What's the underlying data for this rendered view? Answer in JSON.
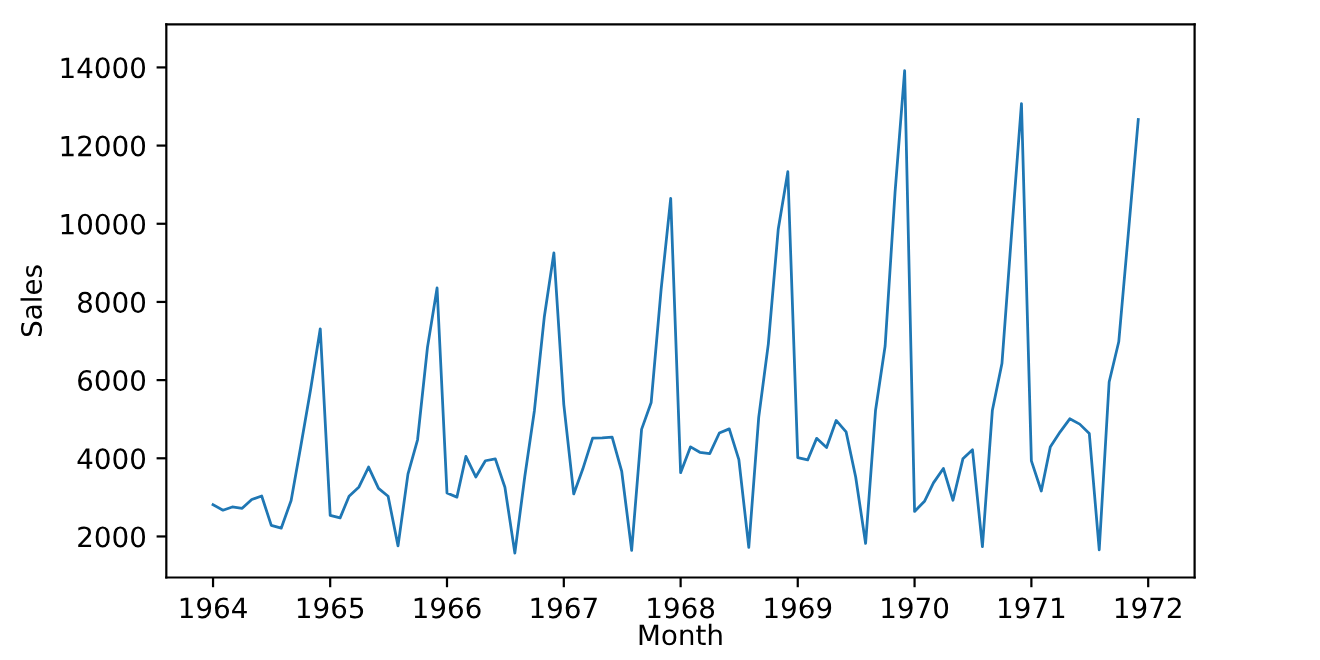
{
  "chart_data": {
    "type": "line",
    "xlabel": "Month",
    "ylabel": "Sales",
    "x": [
      "1964-01",
      "1964-02",
      "1964-03",
      "1964-04",
      "1964-05",
      "1964-06",
      "1964-07",
      "1964-08",
      "1964-09",
      "1964-10",
      "1964-11",
      "1964-12",
      "1965-01",
      "1965-02",
      "1965-03",
      "1965-04",
      "1965-05",
      "1965-06",
      "1965-07",
      "1965-08",
      "1965-09",
      "1965-10",
      "1965-11",
      "1965-12",
      "1966-01",
      "1966-02",
      "1966-03",
      "1966-04",
      "1966-05",
      "1966-06",
      "1966-07",
      "1966-08",
      "1966-09",
      "1966-10",
      "1966-11",
      "1966-12",
      "1967-01",
      "1967-02",
      "1967-03",
      "1967-04",
      "1967-05",
      "1967-06",
      "1967-07",
      "1967-08",
      "1967-09",
      "1967-10",
      "1967-11",
      "1967-12",
      "1968-01",
      "1968-02",
      "1968-03",
      "1968-04",
      "1968-05",
      "1968-06",
      "1968-07",
      "1968-08",
      "1968-09",
      "1968-10",
      "1968-11",
      "1968-12",
      "1969-01",
      "1969-02",
      "1969-03",
      "1969-04",
      "1969-05",
      "1969-06",
      "1969-07",
      "1969-08",
      "1969-09",
      "1969-10",
      "1969-11",
      "1969-12",
      "1970-01",
      "1970-02",
      "1970-03",
      "1970-04",
      "1970-05",
      "1970-06",
      "1970-07",
      "1970-08",
      "1970-09",
      "1970-10",
      "1970-11",
      "1970-12",
      "1971-01",
      "1971-02",
      "1971-03",
      "1971-04",
      "1971-05",
      "1971-06",
      "1971-07",
      "1971-08",
      "1971-09",
      "1971-10",
      "1971-11",
      "1971-12"
    ],
    "series": [
      {
        "color": "#1f77b4",
        "values": [
          2815,
          2672,
          2755,
          2721,
          2946,
          3036,
          2282,
          2212,
          2922,
          4301,
          5764,
          7312,
          2541,
          2475,
          3031,
          3266,
          3776,
          3230,
          3028,
          1759,
          3595,
          4474,
          6838,
          8357,
          3113,
          3006,
          4047,
          3523,
          3937,
          3986,
          3260,
          1573,
          3528,
          5211,
          7614,
          9254,
          5375,
          3088,
          3718,
          4514,
          4520,
          4539,
          3663,
          1643,
          4739,
          5428,
          8314,
          10651,
          3633,
          4292,
          4154,
          4121,
          4647,
          4753,
          3965,
          1723,
          5048,
          6922,
          9858,
          11331,
          4016,
          3957,
          4510,
          4276,
          4968,
          4677,
          3523,
          1821,
          5222,
          6872,
          10803,
          13916,
          2639,
          2899,
          3370,
          3740,
          2927,
          3986,
          4217,
          1738,
          5221,
          6424,
          9842,
          13076,
          3934,
          3162,
          4286,
          4676,
          5010,
          4874,
          4633,
          1659,
          5951,
          6981,
          9851,
          12670
        ]
      }
    ],
    "xlim": [
      "1963-08-08",
      "1972-05-25"
    ],
    "xticks": [
      {
        "value": "1964-01-01",
        "label": "1964"
      },
      {
        "value": "1965-01-01",
        "label": "1965"
      },
      {
        "value": "1966-01-01",
        "label": "1966"
      },
      {
        "value": "1967-01-01",
        "label": "1967"
      },
      {
        "value": "1968-01-01",
        "label": "1968"
      },
      {
        "value": "1969-01-01",
        "label": "1969"
      },
      {
        "value": "1970-01-01",
        "label": "1970"
      },
      {
        "value": "1971-01-01",
        "label": "1971"
      },
      {
        "value": "1972-01-01",
        "label": "1972"
      }
    ],
    "ylim": [
      950,
      15100
    ],
    "yticks": [
      2000,
      4000,
      6000,
      8000,
      10000,
      12000,
      14000
    ],
    "grid": false,
    "legend": false,
    "marker": "none",
    "line_style": "solid"
  }
}
